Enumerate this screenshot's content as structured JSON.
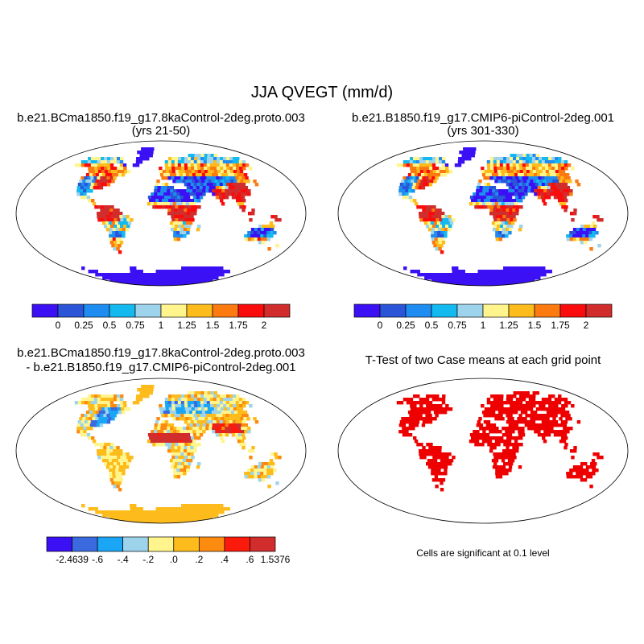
{
  "figure": {
    "title": "JJA QVEGT (mm/d)"
  },
  "chart_data": [
    {
      "type": "heatmap",
      "subtitle_line1": "b.e21.BCma1850.f19_g17.8kaControl-2deg.proto.003",
      "subtitle_line2": "(yrs 21-50)",
      "projection": "Robinson",
      "colorbar": {
        "colors": [
          "#3b10f5",
          "#2a55d8",
          "#1e8cf0",
          "#14b9f0",
          "#9ed3ec",
          "#fff58c",
          "#fdbc1b",
          "#fc7a0f",
          "#fb0c0c",
          "#d12d2d"
        ],
        "tick_labels": [
          "0",
          "0.25",
          "0.5",
          "0.75",
          "1",
          "1.25",
          "1.5",
          "1.75",
          "2"
        ]
      }
    },
    {
      "type": "heatmap",
      "subtitle_line1": "b.e21.B1850.f19_g17.CMIP6-piControl-2deg.001",
      "subtitle_line2": "(yrs 301-330)",
      "projection": "Robinson",
      "colorbar": {
        "colors": [
          "#3b10f5",
          "#2a55d8",
          "#1e8cf0",
          "#14b9f0",
          "#9ed3ec",
          "#fff58c",
          "#fdbc1b",
          "#fc7a0f",
          "#fb0c0c",
          "#d12d2d"
        ],
        "tick_labels": [
          "0",
          "0.25",
          "0.5",
          "0.75",
          "1",
          "1.25",
          "1.5",
          "1.75",
          "2"
        ]
      }
    },
    {
      "type": "heatmap",
      "subtitle_line1": "b.e21.BCma1850.f19_g17.8kaControl-2deg.proto.003",
      "subtitle_line2": "- b.e21.B1850.f19_g17.CMIP6-piControl-2deg.001",
      "projection": "Robinson",
      "colorbar": {
        "colors": [
          "#3b10f5",
          "#3b6ae0",
          "#1aa6f5",
          "#9ed3ec",
          "#fff58c",
          "#fdbc1b",
          "#fc8b0f",
          "#fb1a0c",
          "#d12d2d"
        ],
        "tick_labels": [
          "-2.4639",
          "-.6",
          "-.4",
          "-.2",
          ".0",
          ".2",
          ".4",
          ".6",
          "1.5376"
        ]
      }
    },
    {
      "type": "heatmap",
      "subtitle_line1": "T-Test of two Case means at each grid point",
      "projection": "Robinson",
      "note": "Cells are significant at 0.1 level",
      "significant_color": "#ee0000"
    }
  ]
}
